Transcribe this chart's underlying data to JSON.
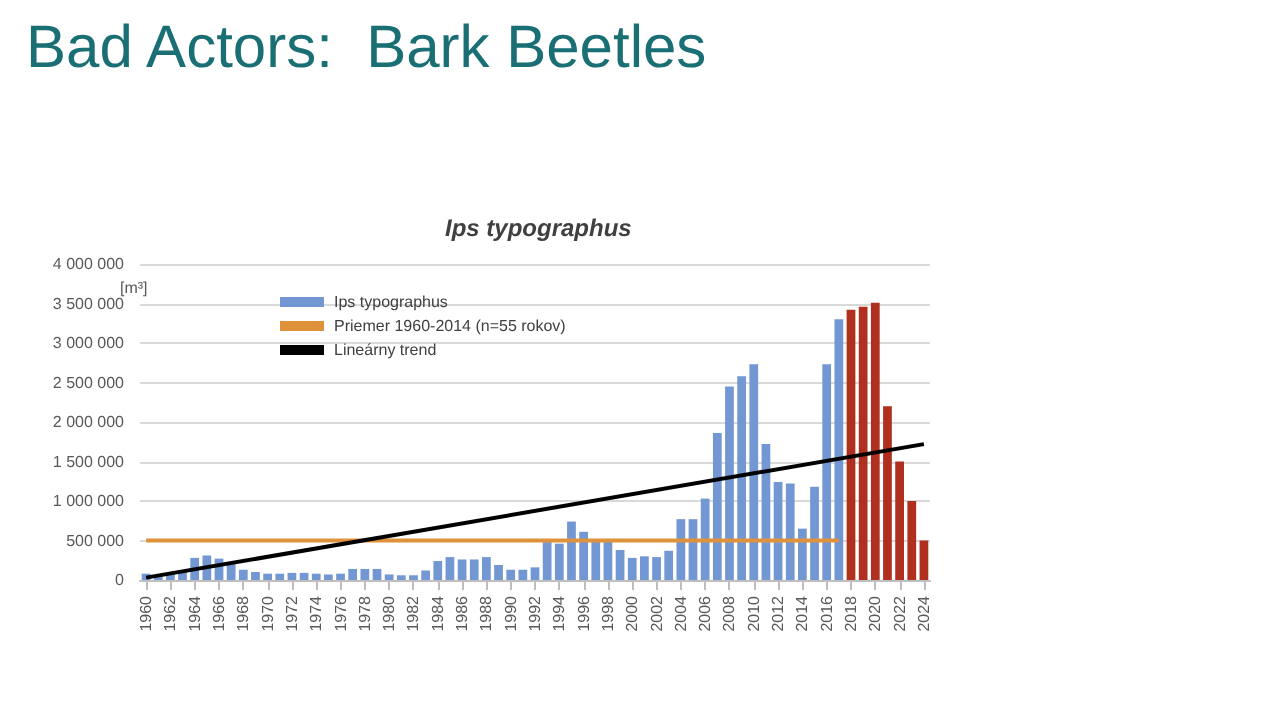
{
  "chart_data": {
    "type": "bar",
    "title": "Bad Actors:  Bark Beetles",
    "subtitle": "Ips typographus",
    "ylabel": "[m³]",
    "x": [
      1960,
      1961,
      1962,
      1963,
      1964,
      1965,
      1966,
      1967,
      1968,
      1969,
      1970,
      1971,
      1972,
      1973,
      1974,
      1975,
      1976,
      1977,
      1978,
      1979,
      1980,
      1981,
      1982,
      1983,
      1984,
      1985,
      1986,
      1987,
      1988,
      1989,
      1990,
      1991,
      1992,
      1993,
      1994,
      1995,
      1996,
      1997,
      1998,
      1999,
      2000,
      2001,
      2002,
      2003,
      2004,
      2005,
      2006,
      2007,
      2008,
      2009,
      2010,
      2011,
      2012,
      2013,
      2014,
      2015,
      2016,
      2017,
      2018,
      2019,
      2020,
      2021,
      2022,
      2023,
      2024
    ],
    "xlim": [
      1959.5,
      2024.5
    ],
    "xticks": [
      1960,
      1962,
      1964,
      1966,
      1968,
      1970,
      1972,
      1974,
      1976,
      1978,
      1980,
      1982,
      1984,
      1986,
      1988,
      1990,
      1992,
      1994,
      1996,
      1998,
      2000,
      2002,
      2004,
      2006,
      2008,
      2010,
      2012,
      2014,
      2016,
      2018,
      2020,
      2022,
      2024
    ],
    "ylim": [
      0,
      4000000
    ],
    "yticks": [
      {
        "value": 0,
        "label": "0"
      },
      {
        "value": 500000,
        "label": "500 000"
      },
      {
        "value": 1000000,
        "label": "1 000 000"
      },
      {
        "value": 1500000,
        "label": "1 500 000"
      },
      {
        "value": 2000000,
        "label": "2 000 000"
      },
      {
        "value": 2500000,
        "label": "2 500 000"
      },
      {
        "value": 3000000,
        "label": "3 000 000"
      },
      {
        "value": 3500000,
        "label": "3 500 000"
      },
      {
        "value": 4000000,
        "label": "4 000 000"
      }
    ],
    "grid": "y",
    "legend": "top left",
    "series": [
      {
        "name": "Ips typographus",
        "color": "#7297d2",
        "values": [
          80000,
          50000,
          80000,
          120000,
          280000,
          310000,
          270000,
          200000,
          130000,
          100000,
          80000,
          80000,
          90000,
          90000,
          80000,
          70000,
          80000,
          140000,
          140000,
          140000,
          70000,
          60000,
          60000,
          120000,
          240000,
          290000,
          260000,
          260000,
          290000,
          190000,
          130000,
          130000,
          160000,
          480000,
          460000,
          740000,
          610000,
          500000,
          500000,
          380000,
          280000,
          300000,
          290000,
          370000,
          770000,
          770000,
          1030000,
          1860000,
          2450000,
          2580000,
          2730000,
          1720000,
          1240000,
          1220000,
          650000,
          1180000,
          2730000,
          3300000,
          3420000,
          3460000,
          3510000,
          2200000,
          1500000,
          1000000,
          500000
        ],
        "colors": [
          "#7297d2",
          "#7297d2",
          "#7297d2",
          "#7297d2",
          "#7297d2",
          "#7297d2",
          "#7297d2",
          "#7297d2",
          "#7297d2",
          "#7297d2",
          "#7297d2",
          "#7297d2",
          "#7297d2",
          "#7297d2",
          "#7297d2",
          "#7297d2",
          "#7297d2",
          "#7297d2",
          "#7297d2",
          "#7297d2",
          "#7297d2",
          "#7297d2",
          "#7297d2",
          "#7297d2",
          "#7297d2",
          "#7297d2",
          "#7297d2",
          "#7297d2",
          "#7297d2",
          "#7297d2",
          "#7297d2",
          "#7297d2",
          "#7297d2",
          "#7297d2",
          "#7297d2",
          "#7297d2",
          "#7297d2",
          "#7297d2",
          "#7297d2",
          "#7297d2",
          "#7297d2",
          "#7297d2",
          "#7297d2",
          "#7297d2",
          "#7297d2",
          "#7297d2",
          "#7297d2",
          "#7297d2",
          "#7297d2",
          "#7297d2",
          "#7297d2",
          "#7297d2",
          "#7297d2",
          "#7297d2",
          "#7297d2",
          "#7297d2",
          "#7297d2",
          "#7297d2",
          "#b0301f",
          "#b0301f",
          "#b0301f",
          "#b0301f",
          "#b0301f",
          "#b0301f",
          "#b0301f"
        ]
      },
      {
        "type": "line",
        "name": "Priemer 1960-2014 (n=55 rokov)",
        "color": "#e0913c",
        "x": [
          1960,
          2017
        ],
        "values": [
          500000,
          500000
        ]
      },
      {
        "type": "line",
        "name": "Lineárny trend",
        "color": "#000000",
        "x": [
          1960,
          2024
        ],
        "values": [
          30000,
          1720000
        ]
      }
    ]
  }
}
